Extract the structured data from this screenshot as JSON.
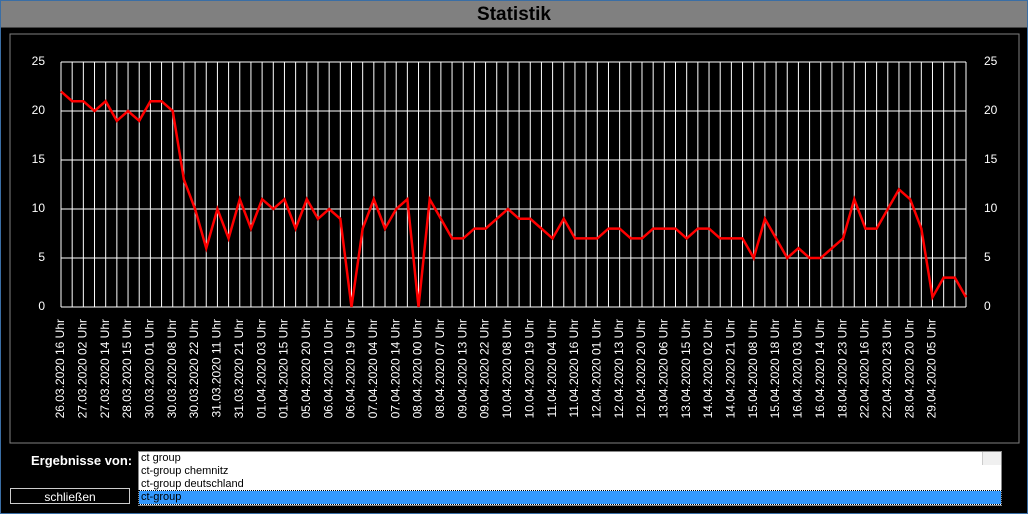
{
  "title": "Statistik",
  "results_label": "Ergebnisse von:",
  "close_button": "schließen",
  "list": {
    "items": [
      "ct group",
      "ct-group chemnitz",
      "ct-group deutschland",
      "ct-group"
    ],
    "selected": 3
  },
  "chart_data": {
    "type": "line",
    "color": "#ff0000",
    "ylim": [
      0,
      25
    ],
    "yticks": [
      0,
      5,
      10,
      15,
      20,
      25
    ],
    "grid": true,
    "categories": [
      "26.03.2020 16 Uhr",
      null,
      "27.03.2020 02 Uhr",
      null,
      "27.03.2020 14 Uhr",
      null,
      "28.03.2020 15 Uhr",
      null,
      "30.03.2020 01 Uhr",
      null,
      "30.03.2020 08 Uhr",
      null,
      "30.03.2020 22 Uhr",
      null,
      "31.03.2020 11 Uhr",
      null,
      "31.03.2020 21 Uhr",
      null,
      "01.04.2020 03 Uhr",
      null,
      "01.04.2020 15 Uhr",
      null,
      "05.04.2020 20 Uhr",
      null,
      "06.04.2020 10 Uhr",
      null,
      "06.04.2020 19 Uhr",
      null,
      "07.04.2020 04 Uhr",
      null,
      "07.04.2020 14 Uhr",
      null,
      "08.04.2020 00 Uhr",
      null,
      "08.04.2020 07 Uhr",
      null,
      "09.04.2020 13 Uhr",
      null,
      "09.04.2020 22 Uhr",
      null,
      "10.04.2020 08 Uhr",
      null,
      "10.04.2020 19 Uhr",
      null,
      "11.04.2020 04 Uhr",
      null,
      "11.04.2020 16 Uhr",
      null,
      "12.04.2020 01 Uhr",
      null,
      "12.04.2020 13 Uhr",
      null,
      "12.04.2020 20 Uhr",
      null,
      "13.04.2020 06 Uhr",
      null,
      "13.04.2020 15 Uhr",
      null,
      "14.04.2020 02 Uhr",
      null,
      "14.04.2020 21 Uhr",
      null,
      "15.04.2020 08 Uhr",
      null,
      "15.04.2020 18 Uhr",
      null,
      "16.04.2020 03 Uhr",
      null,
      "16.04.2020 14 Uhr",
      null,
      "18.04.2020 23 Uhr",
      null,
      "22.04.2020 16 Uhr",
      null,
      "22.04.2020 23 Uhr",
      null,
      "28.04.2020 20 Uhr",
      null,
      "29.04.2020 05 Uhr",
      null,
      null,
      null
    ],
    "values": [
      22,
      21,
      21,
      20,
      21,
      19,
      20,
      19,
      21,
      21,
      20,
      13,
      10,
      6,
      10,
      7,
      11,
      8,
      11,
      10,
      11,
      8,
      11,
      9,
      10,
      9,
      0,
      8,
      11,
      8,
      10,
      11,
      0,
      11,
      9,
      7,
      7,
      8,
      8,
      9,
      10,
      9,
      9,
      8,
      7,
      9,
      7,
      7,
      7,
      8,
      8,
      7,
      7,
      8,
      8,
      8,
      7,
      8,
      8,
      7,
      7,
      7,
      5,
      9,
      7,
      5,
      6,
      5,
      5,
      6,
      7,
      11,
      8,
      8,
      10,
      12,
      11,
      8,
      1,
      3,
      3,
      1
    ]
  }
}
